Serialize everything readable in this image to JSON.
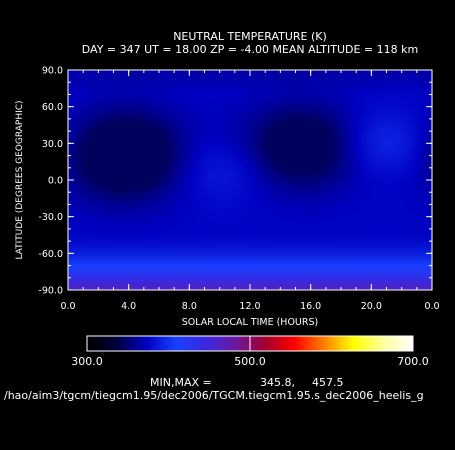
{
  "chart_data": {
    "type": "heatmap",
    "title": "NEUTRAL TEMPERATURE (K)",
    "subtitle": "DAY = 347   UT = 18.00   ZP =   -4.00   MEAN ALTITUDE = 118 km",
    "xlabel": "SOLAR LOCAL TIME (HOURS)",
    "ylabel": "LATITUDE (DEGREES GEOGRAPHIC)",
    "xlim": [
      0,
      24
    ],
    "ylim": [
      -90,
      90
    ],
    "x_tick_labels": [
      "0.0",
      "4.0",
      "8.0",
      "12.0",
      "16.0",
      "20.0",
      "0.0"
    ],
    "y_tick_labels": [
      "90.0",
      "60.0",
      "30.0",
      "0.0",
      "-30.0",
      "-60.0",
      "-90.0"
    ],
    "colorbar": {
      "min": 300.0,
      "max": 700.0,
      "tick_labels": [
        "300.0",
        "500.0",
        "700.0"
      ],
      "colors": [
        "#000000",
        "#00003a",
        "#0000c0",
        "#1840ff",
        "#3a28e0",
        "#6a18a0",
        "#a00030",
        "#ff0000",
        "#ff8000",
        "#ffff00",
        "#ffffa0",
        "#ffffff"
      ]
    },
    "min_max_label": "MIN,MAX =",
    "min_value": "345.8,",
    "max_value": "457.5",
    "blobs": [
      {
        "lt": 3.8,
        "lat": 20,
        "amp": -55,
        "slt": 2.6,
        "slat": 25
      },
      {
        "lt": 15.4,
        "lat": 27,
        "amp": -45,
        "slt": 2.6,
        "slat": 24
      },
      {
        "lt": 20.8,
        "lat": 30,
        "amp": 22,
        "slt": 2.0,
        "slat": 18
      },
      {
        "lt": 10.2,
        "lat": 8,
        "amp": 15,
        "slt": 2.2,
        "slat": 18
      }
    ]
  },
  "footer": {
    "file_path": "/hao/aim3/tgcm/tiegcm1.95/dec2006/TGCM.tiegcm1.95.s_dec2006_heelis_g"
  }
}
